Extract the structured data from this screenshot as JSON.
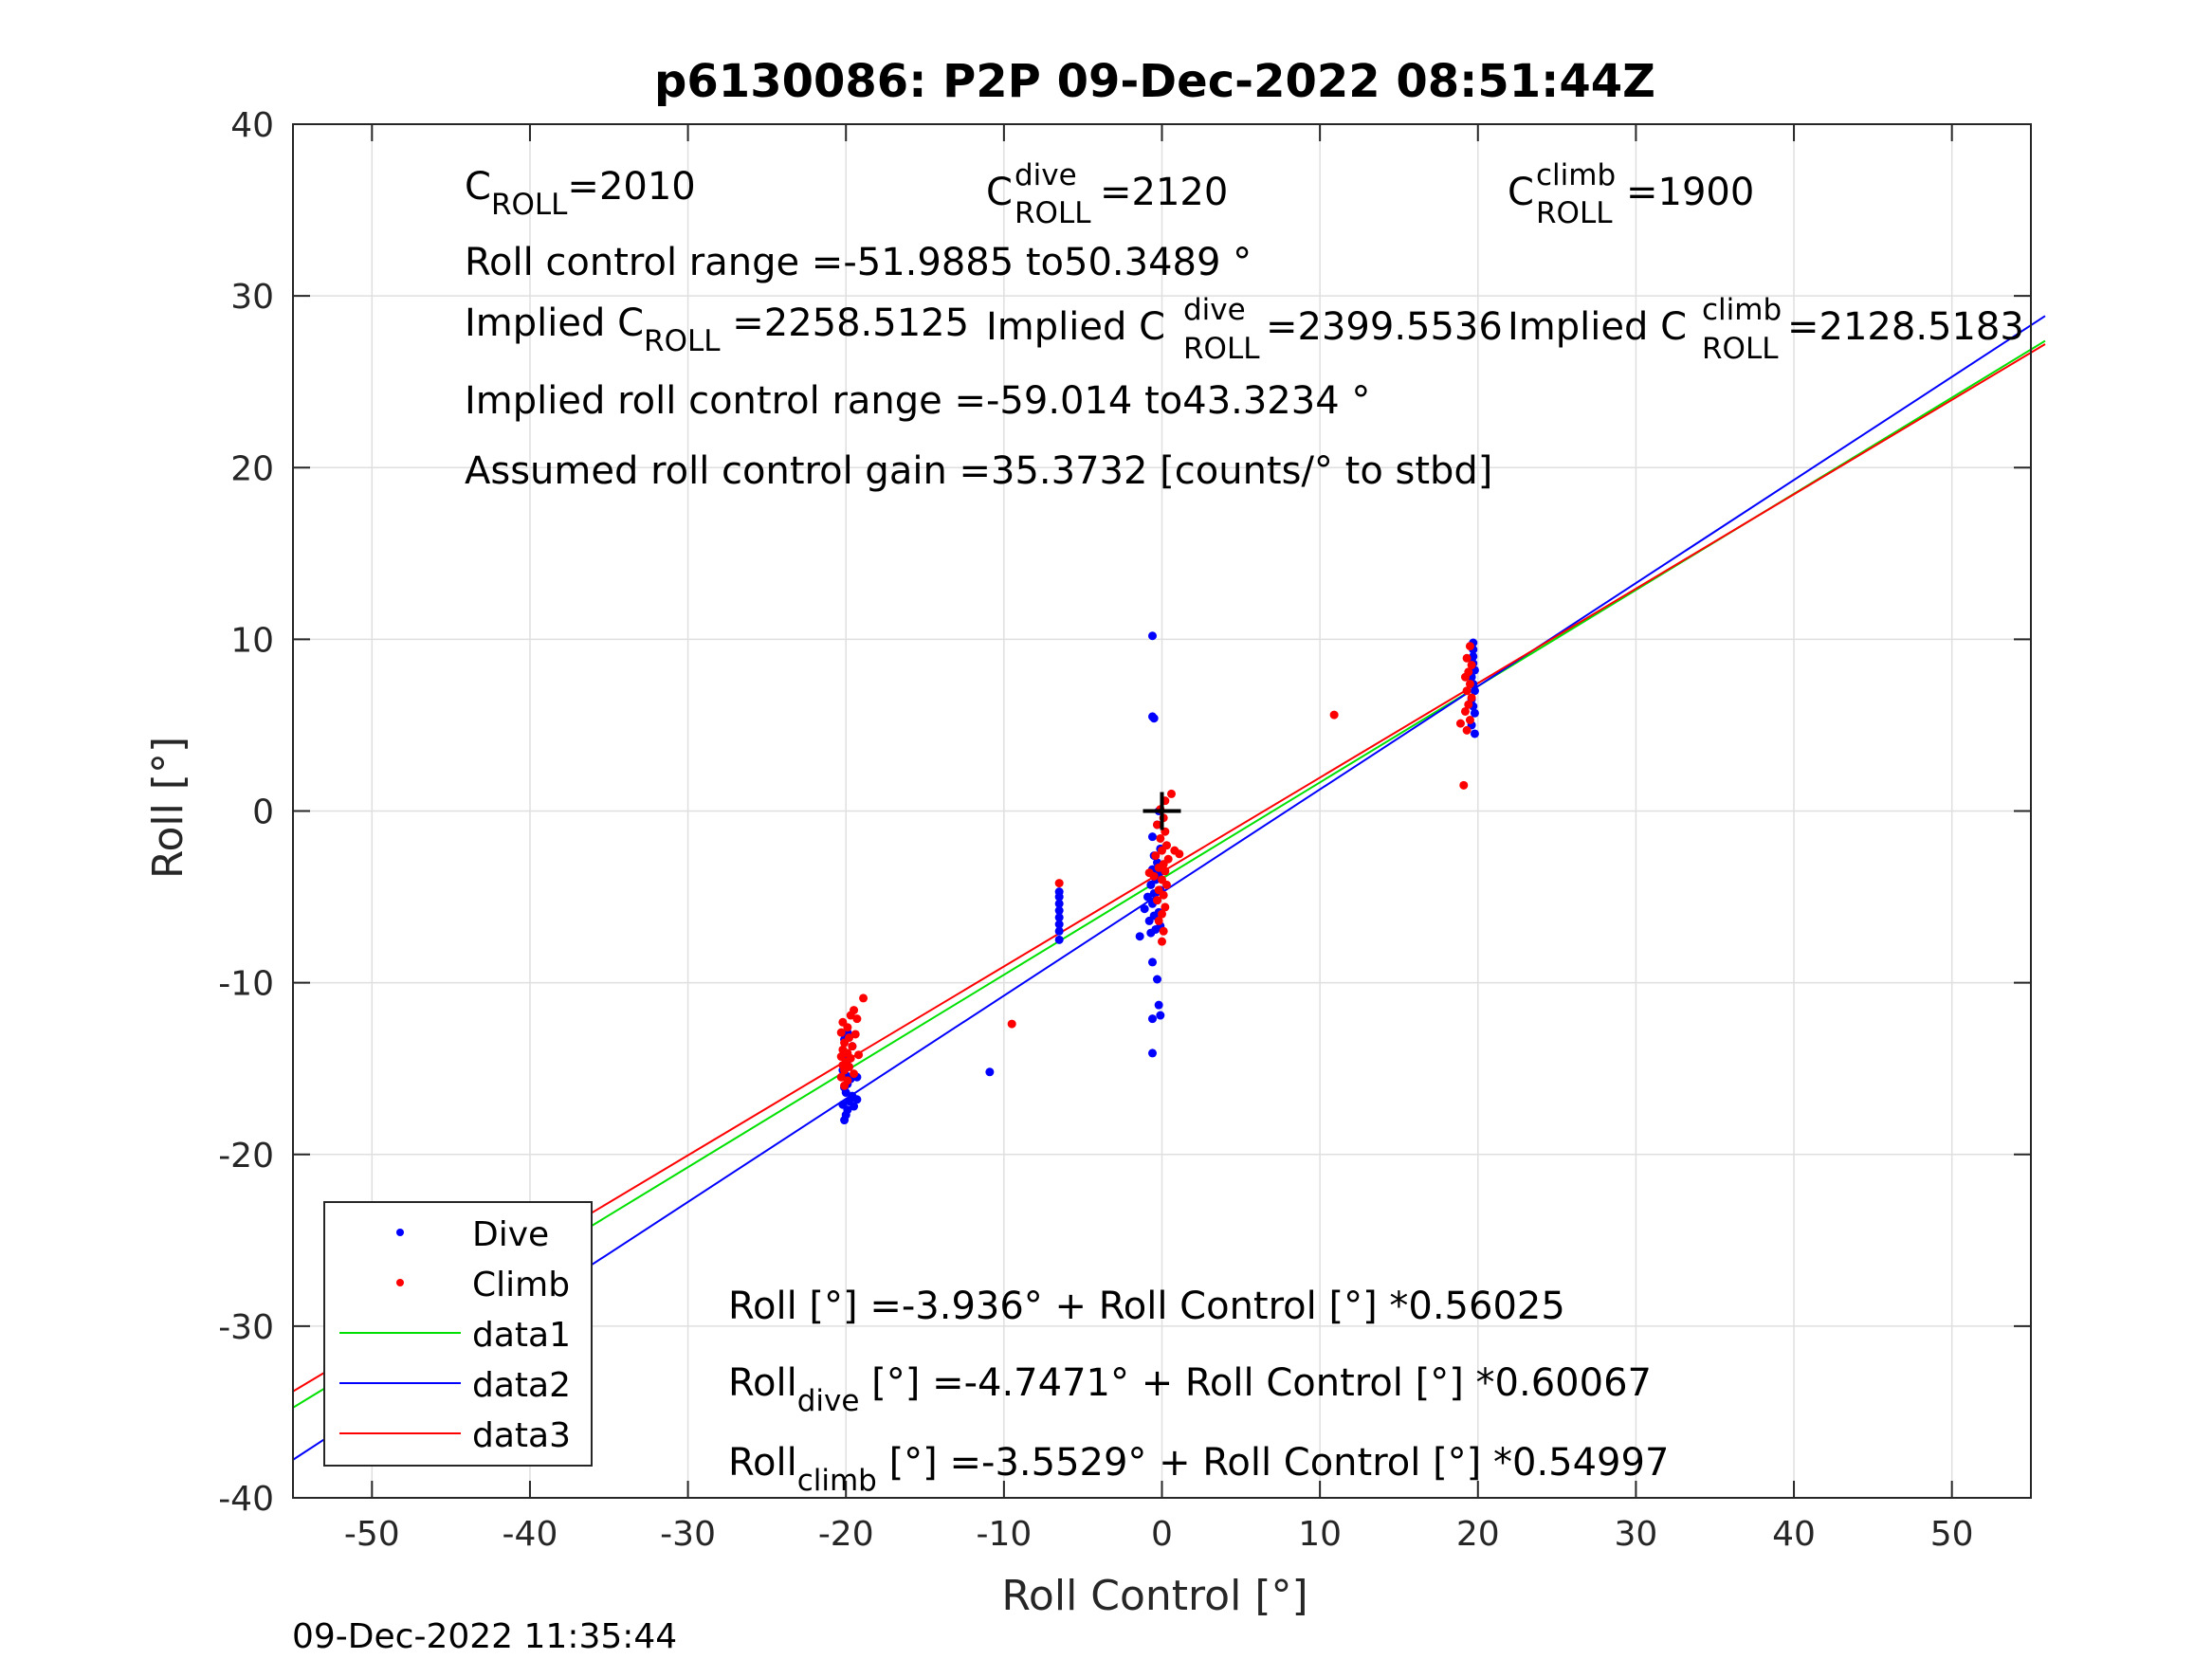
{
  "chart_data": {
    "type": "scatter",
    "title": "p6130086: P2P 09-Dec-2022 08:51:44Z",
    "xlabel": "Roll Control [°]",
    "ylabel": "Roll [°]",
    "xlim": [
      -55,
      55
    ],
    "ylim": [
      -40,
      40
    ],
    "xticks": [
      -50,
      -40,
      -30,
      -20,
      -10,
      0,
      10,
      20,
      30,
      40,
      50
    ],
    "yticks": [
      -40,
      -30,
      -20,
      -10,
      0,
      10,
      20,
      30,
      40
    ],
    "grid": true,
    "legend_position": "bottom-left",
    "timestamp": "09-Dec-2022 11:35:44",
    "colors": {
      "dive": "#0000ff",
      "climb": "#ff0000",
      "data1": "#00e000",
      "data2": "#0000ff",
      "data3": "#ff0000",
      "marker": "#000000"
    },
    "marker_label": "+",
    "series": [
      {
        "name": "Dive",
        "kind": "points",
        "color": "#0000ff",
        "points": [
          [
            -20.1,
            -18.0
          ],
          [
            -20.0,
            -17.7
          ],
          [
            -19.9,
            -17.4
          ],
          [
            -20.2,
            -17.1
          ],
          [
            -19.8,
            -16.9
          ],
          [
            -19.6,
            -16.6
          ],
          [
            -20.0,
            -16.4
          ],
          [
            -20.1,
            -16.1
          ],
          [
            -19.9,
            -15.9
          ],
          [
            -19.7,
            -15.6
          ],
          [
            -20.0,
            -15.4
          ],
          [
            -20.2,
            -15.1
          ],
          [
            -19.8,
            -14.9
          ],
          [
            -19.9,
            -14.5
          ],
          [
            -20.0,
            -14.1
          ],
          [
            -19.6,
            -13.7
          ],
          [
            -20.1,
            -13.3
          ],
          [
            -19.9,
            -12.9
          ],
          [
            -19.3,
            -16.8
          ],
          [
            -19.3,
            -15.5
          ],
          [
            -19.5,
            -17.2
          ],
          [
            -10.9,
            -15.2
          ],
          [
            -6.5,
            -7.5
          ],
          [
            -6.5,
            -7.0
          ],
          [
            -6.5,
            -6.6
          ],
          [
            -6.5,
            -6.2
          ],
          [
            -6.5,
            -5.8
          ],
          [
            -6.5,
            -5.4
          ],
          [
            -6.5,
            -5.0
          ],
          [
            -6.5,
            -4.7
          ],
          [
            -0.6,
            10.2
          ],
          [
            -0.6,
            5.5
          ],
          [
            -0.5,
            5.4
          ],
          [
            -0.6,
            -14.1
          ],
          [
            -0.6,
            -12.1
          ],
          [
            -0.1,
            -11.9
          ],
          [
            -0.2,
            -11.3
          ],
          [
            -0.3,
            -9.8
          ],
          [
            -0.6,
            -8.8
          ],
          [
            -1.4,
            -7.3
          ],
          [
            -0.7,
            -7.1
          ],
          [
            -0.4,
            -6.9
          ],
          [
            -0.1,
            -6.7
          ],
          [
            -0.8,
            -6.4
          ],
          [
            -0.5,
            -6.1
          ],
          [
            -0.2,
            -5.9
          ],
          [
            -1.1,
            -5.7
          ],
          [
            -0.6,
            -5.4
          ],
          [
            -0.3,
            -5.2
          ],
          [
            -0.9,
            -5.0
          ],
          [
            -0.5,
            -4.8
          ],
          [
            -0.1,
            -4.6
          ],
          [
            -0.7,
            -4.3
          ],
          [
            -0.4,
            -4.0
          ],
          [
            -0.2,
            -3.7
          ],
          [
            -0.6,
            -3.4
          ],
          [
            -0.3,
            -3.0
          ],
          [
            -0.5,
            -2.6
          ],
          [
            -0.1,
            -2.2
          ],
          [
            -0.6,
            -1.5
          ],
          [
            -0.3,
            -0.8
          ],
          [
            -0.2,
            0.0
          ],
          [
            19.7,
            9.8
          ],
          [
            19.7,
            9.4
          ],
          [
            19.7,
            9.0
          ],
          [
            19.7,
            8.6
          ],
          [
            19.8,
            8.2
          ],
          [
            19.6,
            7.8
          ],
          [
            19.7,
            7.4
          ],
          [
            19.8,
            7.0
          ],
          [
            19.6,
            6.5
          ],
          [
            19.7,
            6.1
          ],
          [
            19.8,
            5.7
          ],
          [
            19.6,
            5.0
          ],
          [
            19.8,
            4.5
          ]
        ]
      },
      {
        "name": "Climb",
        "kind": "points",
        "color": "#ff0000",
        "points": [
          [
            -18.9,
            -10.9
          ],
          [
            -19.5,
            -11.6
          ],
          [
            -19.7,
            -11.9
          ],
          [
            -20.2,
            -12.3
          ],
          [
            -19.9,
            -12.6
          ],
          [
            -20.3,
            -12.9
          ],
          [
            -19.8,
            -13.2
          ],
          [
            -20.1,
            -13.5
          ],
          [
            -19.6,
            -13.7
          ],
          [
            -20.2,
            -13.9
          ],
          [
            -19.9,
            -14.1
          ],
          [
            -20.3,
            -14.3
          ],
          [
            -19.7,
            -14.4
          ],
          [
            -20.0,
            -14.6
          ],
          [
            -20.2,
            -14.8
          ],
          [
            -19.8,
            -14.9
          ],
          [
            -20.1,
            -15.1
          ],
          [
            -19.5,
            -15.3
          ],
          [
            -20.3,
            -15.5
          ],
          [
            -19.9,
            -15.7
          ],
          [
            -20.1,
            -16.0
          ],
          [
            -19.4,
            -13.0
          ],
          [
            -19.2,
            -14.2
          ],
          [
            -19.3,
            -12.1
          ],
          [
            -9.5,
            -12.4
          ],
          [
            -6.5,
            -4.2
          ],
          [
            10.9,
            5.6
          ],
          [
            0.6,
            1.0
          ],
          [
            0.2,
            0.6
          ],
          [
            -0.1,
            0.1
          ],
          [
            0.1,
            -0.4
          ],
          [
            -0.3,
            -0.8
          ],
          [
            0.2,
            -1.2
          ],
          [
            -0.1,
            -1.6
          ],
          [
            0.3,
            -2.0
          ],
          [
            0.0,
            -2.3
          ],
          [
            -0.4,
            -2.6
          ],
          [
            0.4,
            -2.8
          ],
          [
            0.1,
            -3.1
          ],
          [
            -0.2,
            -3.3
          ],
          [
            0.2,
            -3.5
          ],
          [
            -0.5,
            -3.8
          ],
          [
            0.0,
            -4.0
          ],
          [
            0.3,
            -4.3
          ],
          [
            -0.2,
            -4.6
          ],
          [
            0.1,
            -4.9
          ],
          [
            -0.3,
            -5.2
          ],
          [
            0.2,
            -5.6
          ],
          [
            0.0,
            -6.0
          ],
          [
            -0.2,
            -6.4
          ],
          [
            0.1,
            -7.0
          ],
          [
            0.0,
            -7.6
          ],
          [
            0.8,
            -2.3
          ],
          [
            1.1,
            -2.5
          ],
          [
            -0.8,
            -3.6
          ],
          [
            19.1,
            1.5
          ],
          [
            18.9,
            5.1
          ],
          [
            19.3,
            4.7
          ],
          [
            19.5,
            5.3
          ],
          [
            19.2,
            5.8
          ],
          [
            19.4,
            6.2
          ],
          [
            19.6,
            6.6
          ],
          [
            19.3,
            7.0
          ],
          [
            19.5,
            7.4
          ],
          [
            19.2,
            7.8
          ],
          [
            19.4,
            8.1
          ],
          [
            19.6,
            8.5
          ],
          [
            19.3,
            8.9
          ],
          [
            19.5,
            9.6
          ]
        ]
      },
      {
        "name": "data1",
        "kind": "line",
        "color": "#00e000",
        "intercept": -3.936,
        "slope": 0.56025
      },
      {
        "name": "data2",
        "kind": "line",
        "color": "#0000ff",
        "intercept": -4.7471,
        "slope": 0.60067
      },
      {
        "name": "data3",
        "kind": "line",
        "color": "#ff0000",
        "intercept": -3.5529,
        "slope": 0.54997
      }
    ],
    "annotations_top": [
      {
        "id": "c-roll",
        "base": "C",
        "sub": "ROLL",
        "sup": "",
        "value": "=2010"
      },
      {
        "id": "c-roll-dive",
        "base": "C",
        "sub": "ROLL",
        "sup": "dive",
        "value": " =2120"
      },
      {
        "id": "c-roll-climb",
        "base": "C",
        "sub": "ROLL",
        "sup": "climb",
        "value": " =1900"
      },
      {
        "id": "range",
        "text": "Roll control range =-51.9885 to50.3489 °"
      },
      {
        "id": "implied-c",
        "prefix": "Implied C",
        "sub": "ROLL",
        "sup": "",
        "value": " =2258.5125"
      },
      {
        "id": "implied-c-dive",
        "prefix": "Implied C",
        "sub": "ROLL",
        "sup": "dive",
        "value": " =2399.5536"
      },
      {
        "id": "implied-c-climb",
        "prefix": "Implied C",
        "sub": "ROLL",
        "sup": "climb",
        "value": " =2128.5183"
      },
      {
        "id": "implied-range",
        "text": "Implied roll control range =-59.014 to43.3234 °"
      },
      {
        "id": "gain",
        "text": "Assumed roll control gain =35.3732 [counts/° to stbd]"
      }
    ],
    "equations": [
      {
        "id": "eq-all",
        "base": "Roll",
        "sub": "",
        "rest": " [°] =-3.936° + Roll Control [°] *0.56025"
      },
      {
        "id": "eq-dive",
        "base": "Roll",
        "sub": "dive",
        "rest": " [°] =-4.7471° + Roll Control [°] *0.60067"
      },
      {
        "id": "eq-climb",
        "base": "Roll",
        "sub": "climb",
        "rest": " [°] =-3.5529° + Roll Control [°] *0.54997"
      }
    ]
  }
}
